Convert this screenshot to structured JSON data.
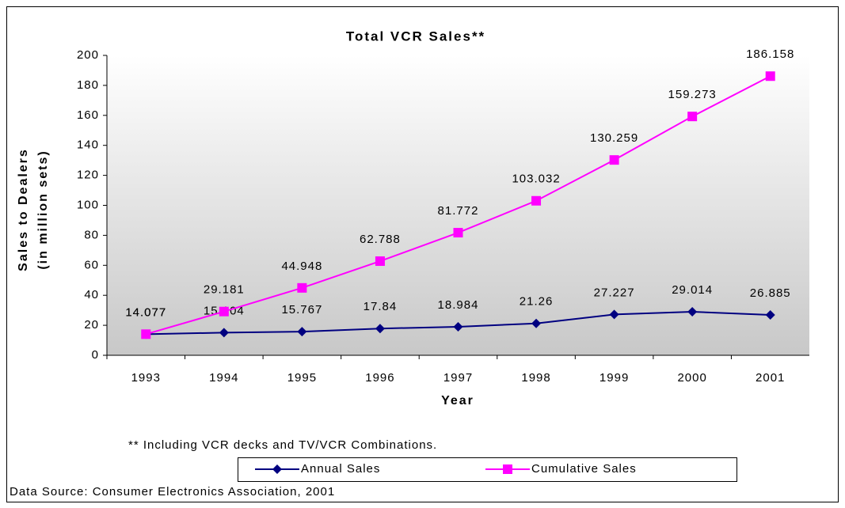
{
  "chart_data": {
    "type": "line",
    "title": "Total VCR Sales**",
    "x_label": "Year",
    "y_label": [
      "Sales to Dealers",
      "(in million sets)"
    ],
    "footnote": "** Including VCR decks and TV/VCR Combinations.",
    "source": "Data Source:  Consumer Electronics Association, 2001",
    "categories": [
      "1993",
      "1994",
      "1995",
      "1996",
      "1997",
      "1998",
      "1999",
      "2000",
      "2001"
    ],
    "series": [
      {
        "name": "Annual Sales",
        "color": "#000080",
        "marker": "diamond",
        "values": [
          14.077,
          15.104,
          15.767,
          17.84,
          18.984,
          21.26,
          27.227,
          29.014,
          26.885
        ]
      },
      {
        "name": "Cumulative Sales",
        "color": "#ff00ff",
        "marker": "square",
        "values": [
          14.077,
          29.181,
          44.948,
          62.788,
          81.772,
          103.032,
          130.259,
          159.273,
          186.158
        ]
      }
    ],
    "ylim": [
      0,
      200
    ],
    "yticks": [
      0,
      20,
      40,
      60,
      80,
      100,
      120,
      140,
      160,
      180,
      200
    ],
    "legend": "bottom"
  }
}
